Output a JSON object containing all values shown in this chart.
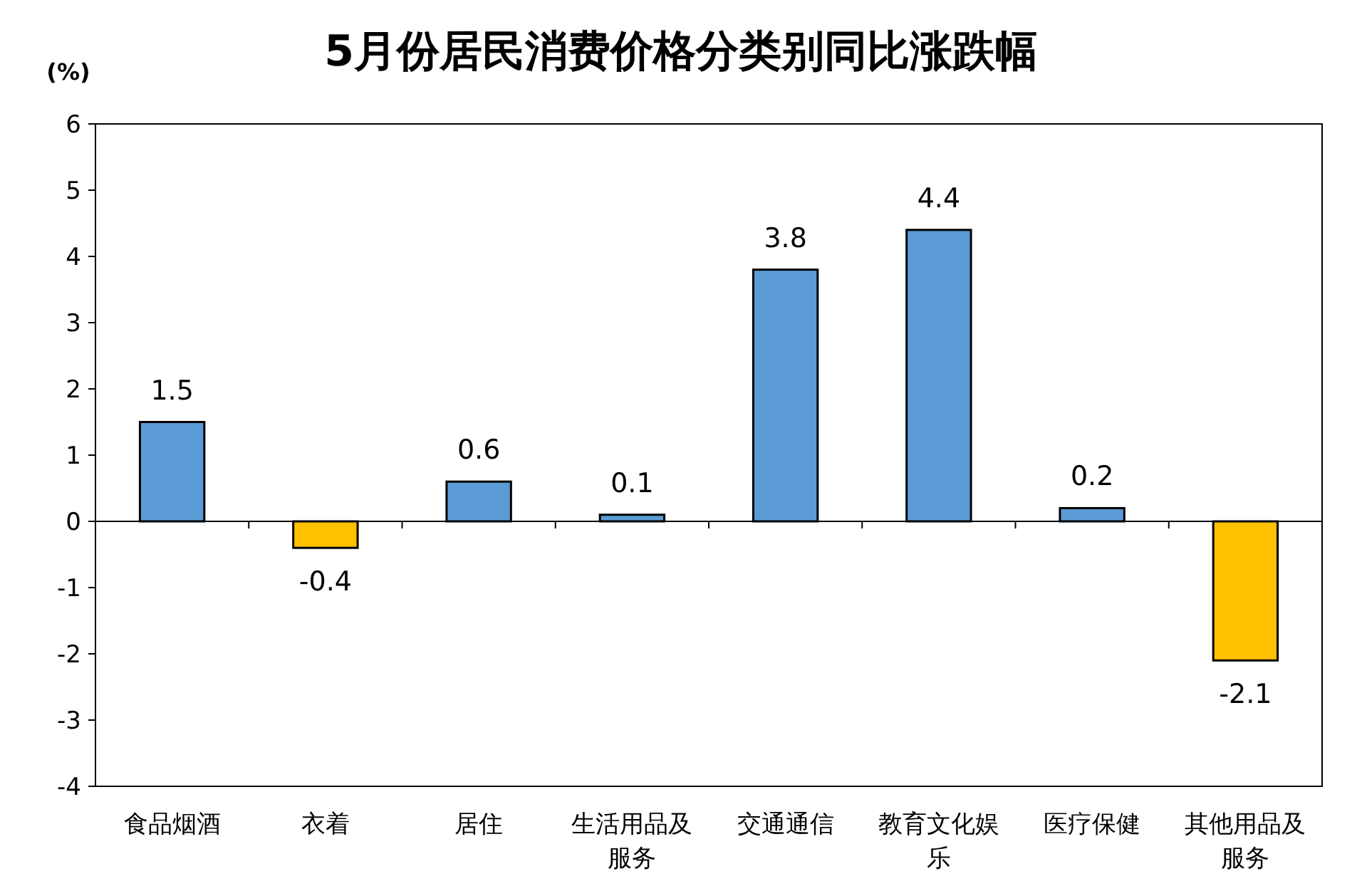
{
  "chart_data": {
    "type": "bar",
    "title": "5月份居民消费价格分类别同比涨跌幅",
    "ylabel": "(%)",
    "categories": [
      "食品烟酒",
      "衣着",
      "居住",
      "生活用品及服务",
      "交通通信",
      "教育文化娱乐",
      "医疗保健",
      "其他用品及服务"
    ],
    "values": [
      1.5,
      -0.4,
      0.6,
      0.1,
      3.8,
      4.4,
      0.2,
      -2.1
    ],
    "colors": [
      "#5b9bd5",
      "#ffc000",
      "#5b9bd5",
      "#5b9bd5",
      "#5b9bd5",
      "#5b9bd5",
      "#5b9bd5",
      "#ffc000"
    ],
    "ylim": [
      -4,
      6
    ],
    "yticks": [
      -4,
      -3,
      -2,
      -1,
      0,
      1,
      2,
      3,
      4,
      5,
      6
    ],
    "data_labels": true
  }
}
